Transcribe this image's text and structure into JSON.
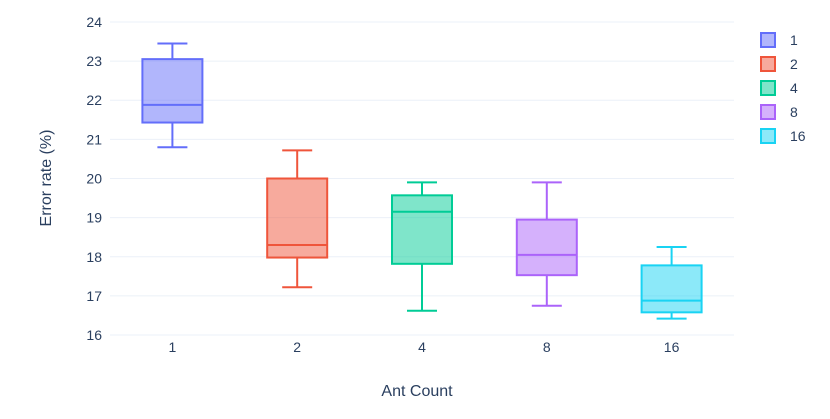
{
  "chart_data": {
    "type": "box",
    "xlabel": "Ant Count",
    "ylabel": "Error rate (%)",
    "categories": [
      "1",
      "2",
      "4",
      "8",
      "16"
    ],
    "ylim": [
      15.95,
      24.05
    ],
    "yticks": [
      16,
      17,
      18,
      19,
      20,
      21,
      22,
      23,
      24
    ],
    "grid": true,
    "legend_position": "top-right",
    "series": [
      {
        "name": "1",
        "color": "#636efa",
        "min": 20.8,
        "q1": 21.43,
        "median": 21.88,
        "q3": 23.05,
        "max": 23.45
      },
      {
        "name": "2",
        "color": "#ef553b",
        "min": 17.22,
        "q1": 17.98,
        "median": 18.3,
        "q3": 20.0,
        "max": 20.72
      },
      {
        "name": "4",
        "color": "#00cc96",
        "min": 16.62,
        "q1": 17.82,
        "median": 19.15,
        "q3": 19.57,
        "max": 19.9
      },
      {
        "name": "8",
        "color": "#ab63fa",
        "min": 16.75,
        "q1": 17.53,
        "median": 18.05,
        "q3": 18.95,
        "max": 19.9
      },
      {
        "name": "16",
        "color": "#19d3f3",
        "min": 16.42,
        "q1": 16.58,
        "median": 16.88,
        "q3": 17.78,
        "max": 18.25
      }
    ]
  }
}
